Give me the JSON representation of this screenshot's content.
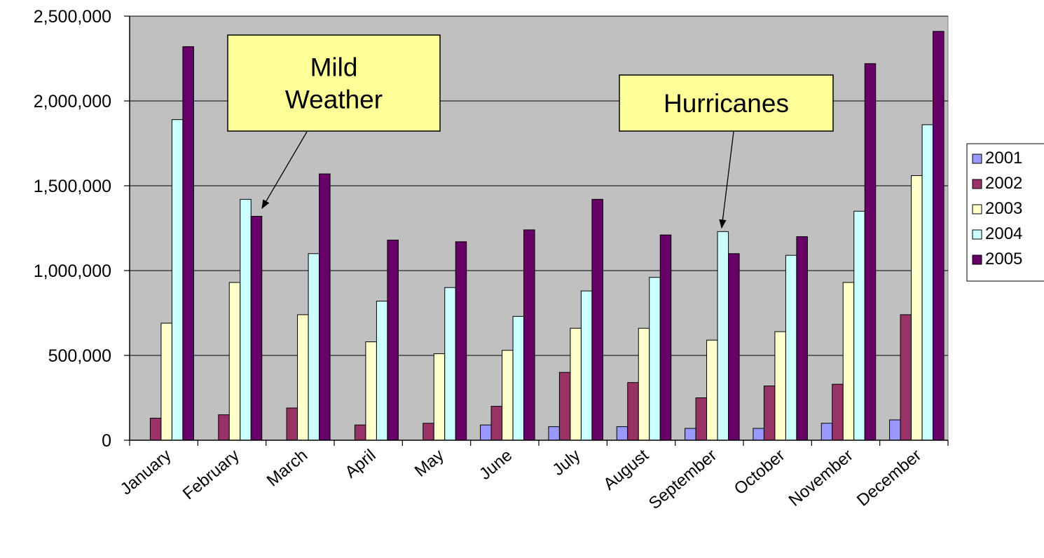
{
  "chart_data": {
    "type": "bar",
    "categories": [
      "January",
      "February",
      "March",
      "April",
      "May",
      "June",
      "July",
      "August",
      "September",
      "October",
      "November",
      "December"
    ],
    "series": [
      {
        "name": "2001",
        "color": "#9999FF",
        "values": [
          0,
          0,
          0,
          0,
          0,
          90000,
          80000,
          80000,
          70000,
          70000,
          100000,
          120000
        ]
      },
      {
        "name": "2002",
        "color": "#993366",
        "values": [
          130000,
          150000,
          190000,
          90000,
          100000,
          200000,
          400000,
          340000,
          250000,
          320000,
          330000,
          740000
        ]
      },
      {
        "name": "2003",
        "color": "#FFFFCC",
        "values": [
          690000,
          930000,
          740000,
          580000,
          510000,
          530000,
          660000,
          660000,
          590000,
          640000,
          930000,
          1560000
        ]
      },
      {
        "name": "2004",
        "color": "#CCFFFF",
        "values": [
          1890000,
          1420000,
          1100000,
          820000,
          900000,
          730000,
          880000,
          960000,
          1230000,
          1090000,
          1350000,
          1860000
        ]
      },
      {
        "name": "2005",
        "color": "#660066",
        "values": [
          2320000,
          1320000,
          1570000,
          1180000,
          1170000,
          1240000,
          1420000,
          1210000,
          1100000,
          1200000,
          2220000,
          2410000
        ]
      }
    ],
    "ylim": [
      0,
      2500000
    ],
    "yticks": [
      "0",
      "500,000",
      "1,000,000",
      "1,500,000",
      "2,000,000",
      "2,500,000"
    ],
    "grid": true,
    "plot_background": "#C0C0C0",
    "legend_position": "right",
    "annotations": [
      {
        "lines": [
          "Mild",
          "Weather"
        ],
        "points_to": {
          "category": "February",
          "series": "2005"
        }
      },
      {
        "lines": [
          "Hurricanes"
        ],
        "points_to": {
          "category": "September",
          "series": "2004"
        }
      }
    ],
    "annotation_fill": "#FFFF99"
  }
}
